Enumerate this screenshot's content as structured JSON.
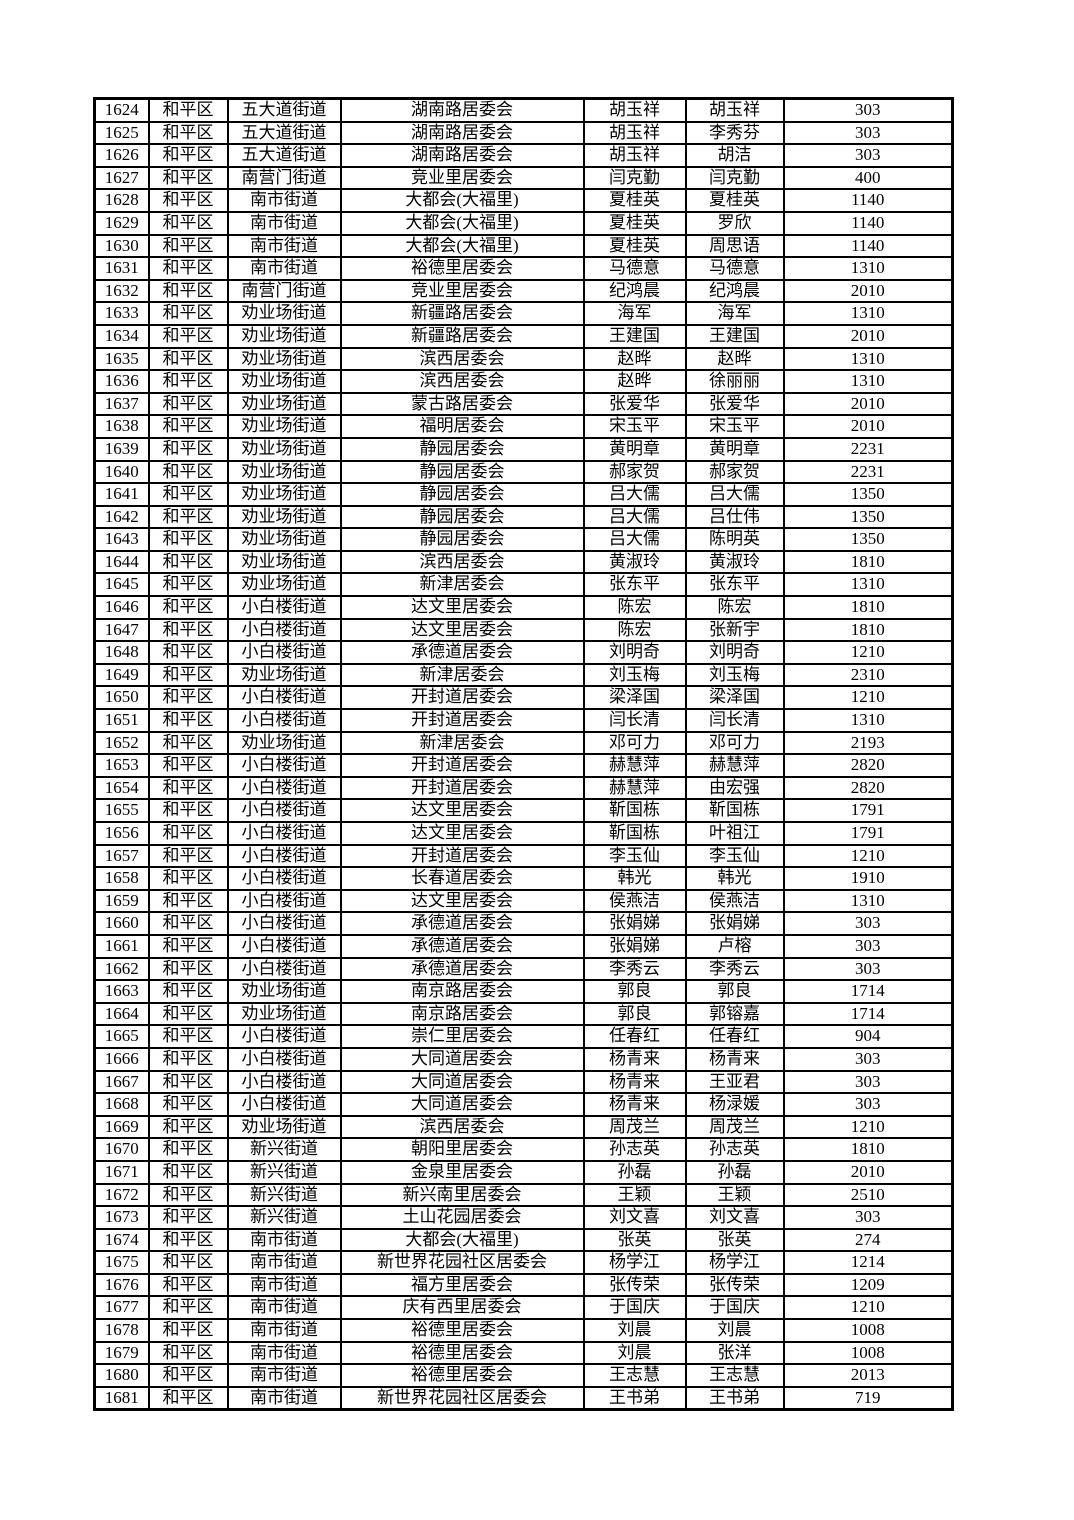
{
  "colors": {
    "background": "#ffffff",
    "grid_line": "#000000",
    "text": "#000000"
  },
  "table": {
    "rows": [
      [
        "1624",
        "和平区",
        "五大道街道",
        "湖南路居委会",
        "胡玉祥",
        "胡玉祥",
        "303"
      ],
      [
        "1625",
        "和平区",
        "五大道街道",
        "湖南路居委会",
        "胡玉祥",
        "李秀芬",
        "303"
      ],
      [
        "1626",
        "和平区",
        "五大道街道",
        "湖南路居委会",
        "胡玉祥",
        "胡洁",
        "303"
      ],
      [
        "1627",
        "和平区",
        "南营门街道",
        "竞业里居委会",
        "闫克勤",
        "闫克勤",
        "400"
      ],
      [
        "1628",
        "和平区",
        "南市街道",
        "大都会(大福里)",
        "夏桂英",
        "夏桂英",
        "1140"
      ],
      [
        "1629",
        "和平区",
        "南市街道",
        "大都会(大福里)",
        "夏桂英",
        "罗欣",
        "1140"
      ],
      [
        "1630",
        "和平区",
        "南市街道",
        "大都会(大福里)",
        "夏桂英",
        "周思语",
        "1140"
      ],
      [
        "1631",
        "和平区",
        "南市街道",
        "裕德里居委会",
        "马德意",
        "马德意",
        "1310"
      ],
      [
        "1632",
        "和平区",
        "南营门街道",
        "竞业里居委会",
        "纪鸿晨",
        "纪鸿晨",
        "2010"
      ],
      [
        "1633",
        "和平区",
        "劝业场街道",
        "新疆路居委会",
        "海军",
        "海军",
        "1310"
      ],
      [
        "1634",
        "和平区",
        "劝业场街道",
        "新疆路居委会",
        "王建国",
        "王建国",
        "2010"
      ],
      [
        "1635",
        "和平区",
        "劝业场街道",
        "滨西居委会",
        "赵晔",
        "赵晔",
        "1310"
      ],
      [
        "1636",
        "和平区",
        "劝业场街道",
        "滨西居委会",
        "赵晔",
        "徐丽丽",
        "1310"
      ],
      [
        "1637",
        "和平区",
        "劝业场街道",
        "蒙古路居委会",
        "张爱华",
        "张爱华",
        "2010"
      ],
      [
        "1638",
        "和平区",
        "劝业场街道",
        "福明居委会",
        "宋玉平",
        "宋玉平",
        "2010"
      ],
      [
        "1639",
        "和平区",
        "劝业场街道",
        "静园居委会",
        "黄明章",
        "黄明章",
        "2231"
      ],
      [
        "1640",
        "和平区",
        "劝业场街道",
        "静园居委会",
        "郝家贺",
        "郝家贺",
        "2231"
      ],
      [
        "1641",
        "和平区",
        "劝业场街道",
        "静园居委会",
        "吕大儒",
        "吕大儒",
        "1350"
      ],
      [
        "1642",
        "和平区",
        "劝业场街道",
        "静园居委会",
        "吕大儒",
        "吕仕伟",
        "1350"
      ],
      [
        "1643",
        "和平区",
        "劝业场街道",
        "静园居委会",
        "吕大儒",
        "陈明英",
        "1350"
      ],
      [
        "1644",
        "和平区",
        "劝业场街道",
        "滨西居委会",
        "黄淑玲",
        "黄淑玲",
        "1810"
      ],
      [
        "1645",
        "和平区",
        "劝业场街道",
        "新津居委会",
        "张东平",
        "张东平",
        "1310"
      ],
      [
        "1646",
        "和平区",
        "小白楼街道",
        "达文里居委会",
        "陈宏",
        "陈宏",
        "1810"
      ],
      [
        "1647",
        "和平区",
        "小白楼街道",
        "达文里居委会",
        "陈宏",
        "张新宇",
        "1810"
      ],
      [
        "1648",
        "和平区",
        "小白楼街道",
        "承德道居委会",
        "刘明奇",
        "刘明奇",
        "1210"
      ],
      [
        "1649",
        "和平区",
        "劝业场街道",
        "新津居委会",
        "刘玉梅",
        "刘玉梅",
        "2310"
      ],
      [
        "1650",
        "和平区",
        "小白楼街道",
        "开封道居委会",
        "梁泽国",
        "梁泽国",
        "1210"
      ],
      [
        "1651",
        "和平区",
        "小白楼街道",
        "开封道居委会",
        "闫长清",
        "闫长清",
        "1310"
      ],
      [
        "1652",
        "和平区",
        "劝业场街道",
        "新津居委会",
        "邓可力",
        "邓可力",
        "2193"
      ],
      [
        "1653",
        "和平区",
        "小白楼街道",
        "开封道居委会",
        "赫慧萍",
        "赫慧萍",
        "2820"
      ],
      [
        "1654",
        "和平区",
        "小白楼街道",
        "开封道居委会",
        "赫慧萍",
        "由宏强",
        "2820"
      ],
      [
        "1655",
        "和平区",
        "小白楼街道",
        "达文里居委会",
        "靳国栋",
        "靳国栋",
        "1791"
      ],
      [
        "1656",
        "和平区",
        "小白楼街道",
        "达文里居委会",
        "靳国栋",
        "叶祖江",
        "1791"
      ],
      [
        "1657",
        "和平区",
        "小白楼街道",
        "开封道居委会",
        "李玉仙",
        "李玉仙",
        "1210"
      ],
      [
        "1658",
        "和平区",
        "小白楼街道",
        "长春道居委会",
        "韩光",
        "韩光",
        "1910"
      ],
      [
        "1659",
        "和平区",
        "小白楼街道",
        "达文里居委会",
        "侯燕洁",
        "侯燕洁",
        "1310"
      ],
      [
        "1660",
        "和平区",
        "小白楼街道",
        "承德道居委会",
        "张娟娣",
        "张娟娣",
        "303"
      ],
      [
        "1661",
        "和平区",
        "小白楼街道",
        "承德道居委会",
        "张娟娣",
        "卢榕",
        "303"
      ],
      [
        "1662",
        "和平区",
        "小白楼街道",
        "承德道居委会",
        "李秀云",
        "李秀云",
        "303"
      ],
      [
        "1663",
        "和平区",
        "劝业场街道",
        "南京路居委会",
        "郭良",
        "郭良",
        "1714"
      ],
      [
        "1664",
        "和平区",
        "劝业场街道",
        "南京路居委会",
        "郭良",
        "郭镕嘉",
        "1714"
      ],
      [
        "1665",
        "和平区",
        "小白楼街道",
        "崇仁里居委会",
        "任春红",
        "任春红",
        "904"
      ],
      [
        "1666",
        "和平区",
        "小白楼街道",
        "大同道居委会",
        "杨青来",
        "杨青来",
        "303"
      ],
      [
        "1667",
        "和平区",
        "小白楼街道",
        "大同道居委会",
        "杨青来",
        "王亚君",
        "303"
      ],
      [
        "1668",
        "和平区",
        "小白楼街道",
        "大同道居委会",
        "杨青来",
        "杨渌媛",
        "303"
      ],
      [
        "1669",
        "和平区",
        "劝业场街道",
        "滨西居委会",
        "周茂兰",
        "周茂兰",
        "1210"
      ],
      [
        "1670",
        "和平区",
        "新兴街道",
        "朝阳里居委会",
        "孙志英",
        "孙志英",
        "1810"
      ],
      [
        "1671",
        "和平区",
        "新兴街道",
        "金泉里居委会",
        "孙磊",
        "孙磊",
        "2010"
      ],
      [
        "1672",
        "和平区",
        "新兴街道",
        "新兴南里居委会",
        "王颖",
        "王颖",
        "2510"
      ],
      [
        "1673",
        "和平区",
        "新兴街道",
        "土山花园居委会",
        "刘文喜",
        "刘文喜",
        "303"
      ],
      [
        "1674",
        "和平区",
        "南市街道",
        "大都会(大福里)",
        "张英",
        "张英",
        "274"
      ],
      [
        "1675",
        "和平区",
        "南市街道",
        "新世界花园社区居委会",
        "杨学江",
        "杨学江",
        "1214"
      ],
      [
        "1676",
        "和平区",
        "南市街道",
        "福方里居委会",
        "张传荣",
        "张传荣",
        "1209"
      ],
      [
        "1677",
        "和平区",
        "南市街道",
        "庆有西里居委会",
        "于国庆",
        "于国庆",
        "1210"
      ],
      [
        "1678",
        "和平区",
        "南市街道",
        "裕德里居委会",
        "刘晨",
        "刘晨",
        "1008"
      ],
      [
        "1679",
        "和平区",
        "南市街道",
        "裕德里居委会",
        "刘晨",
        "张洋",
        "1008"
      ],
      [
        "1680",
        "和平区",
        "南市街道",
        "裕德里居委会",
        "王志慧",
        "王志慧",
        "2013"
      ],
      [
        "1681",
        "和平区",
        "南市街道",
        "新世界花园社区居委会",
        "王书弟",
        "王书弟",
        "719"
      ]
    ]
  }
}
